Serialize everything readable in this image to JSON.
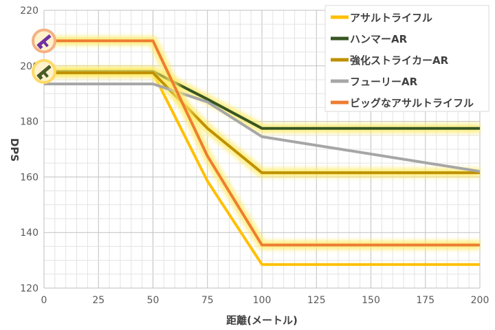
{
  "chart_data": {
    "type": "line",
    "xlabel": "距離(メートル)",
    "ylabel": "DPS",
    "xlim": [
      0,
      200
    ],
    "ylim": [
      120,
      220
    ],
    "x_ticks": [
      0,
      25,
      50,
      75,
      100,
      125,
      150,
      175,
      200
    ],
    "y_ticks": [
      120,
      140,
      160,
      180,
      200,
      220
    ],
    "x_minor_step": 5,
    "y_minor_step": 5,
    "grid": true,
    "legend_position": "top-right",
    "series": [
      {
        "name": "アサルトライフル",
        "color": "#ffc000",
        "glow": false,
        "x": [
          0,
          50,
          75,
          100,
          200
        ],
        "y": [
          197.5,
          197.5,
          158.5,
          128.5,
          128.5
        ]
      },
      {
        "name": "ハンマーAR",
        "color": "#375623",
        "glow": true,
        "x": [
          0,
          50,
          75,
          100,
          200
        ],
        "y": [
          198,
          198,
          188,
          177.5,
          177.5
        ]
      },
      {
        "name": "強化ストライカーAR",
        "color": "#bf9000",
        "glow": true,
        "x": [
          0,
          50,
          75,
          100,
          200
        ],
        "y": [
          197.5,
          197.5,
          177.5,
          161.5,
          161.5
        ]
      },
      {
        "name": "フューリーAR",
        "color": "#a6a6a6",
        "glow": false,
        "x": [
          0,
          50,
          75,
          100,
          200
        ],
        "y": [
          193.5,
          193.5,
          187,
          174.5,
          162
        ]
      },
      {
        "name": "ビッグなアサルトライフル",
        "color": "#ed7d31",
        "glow": true,
        "x": [
          0,
          50,
          75,
          100,
          200
        ],
        "y": [
          209,
          209,
          167.5,
          135.5,
          135.5
        ]
      }
    ]
  },
  "markers": [
    {
      "name": "purple-rifle-icon",
      "x": 0,
      "y": 209,
      "ring": "#f4b183",
      "gun": "#7030a0"
    },
    {
      "name": "green-rifle-icon",
      "x": 0,
      "y": 198,
      "ring": "#ffd966",
      "gun": "#4a5a2a"
    }
  ]
}
